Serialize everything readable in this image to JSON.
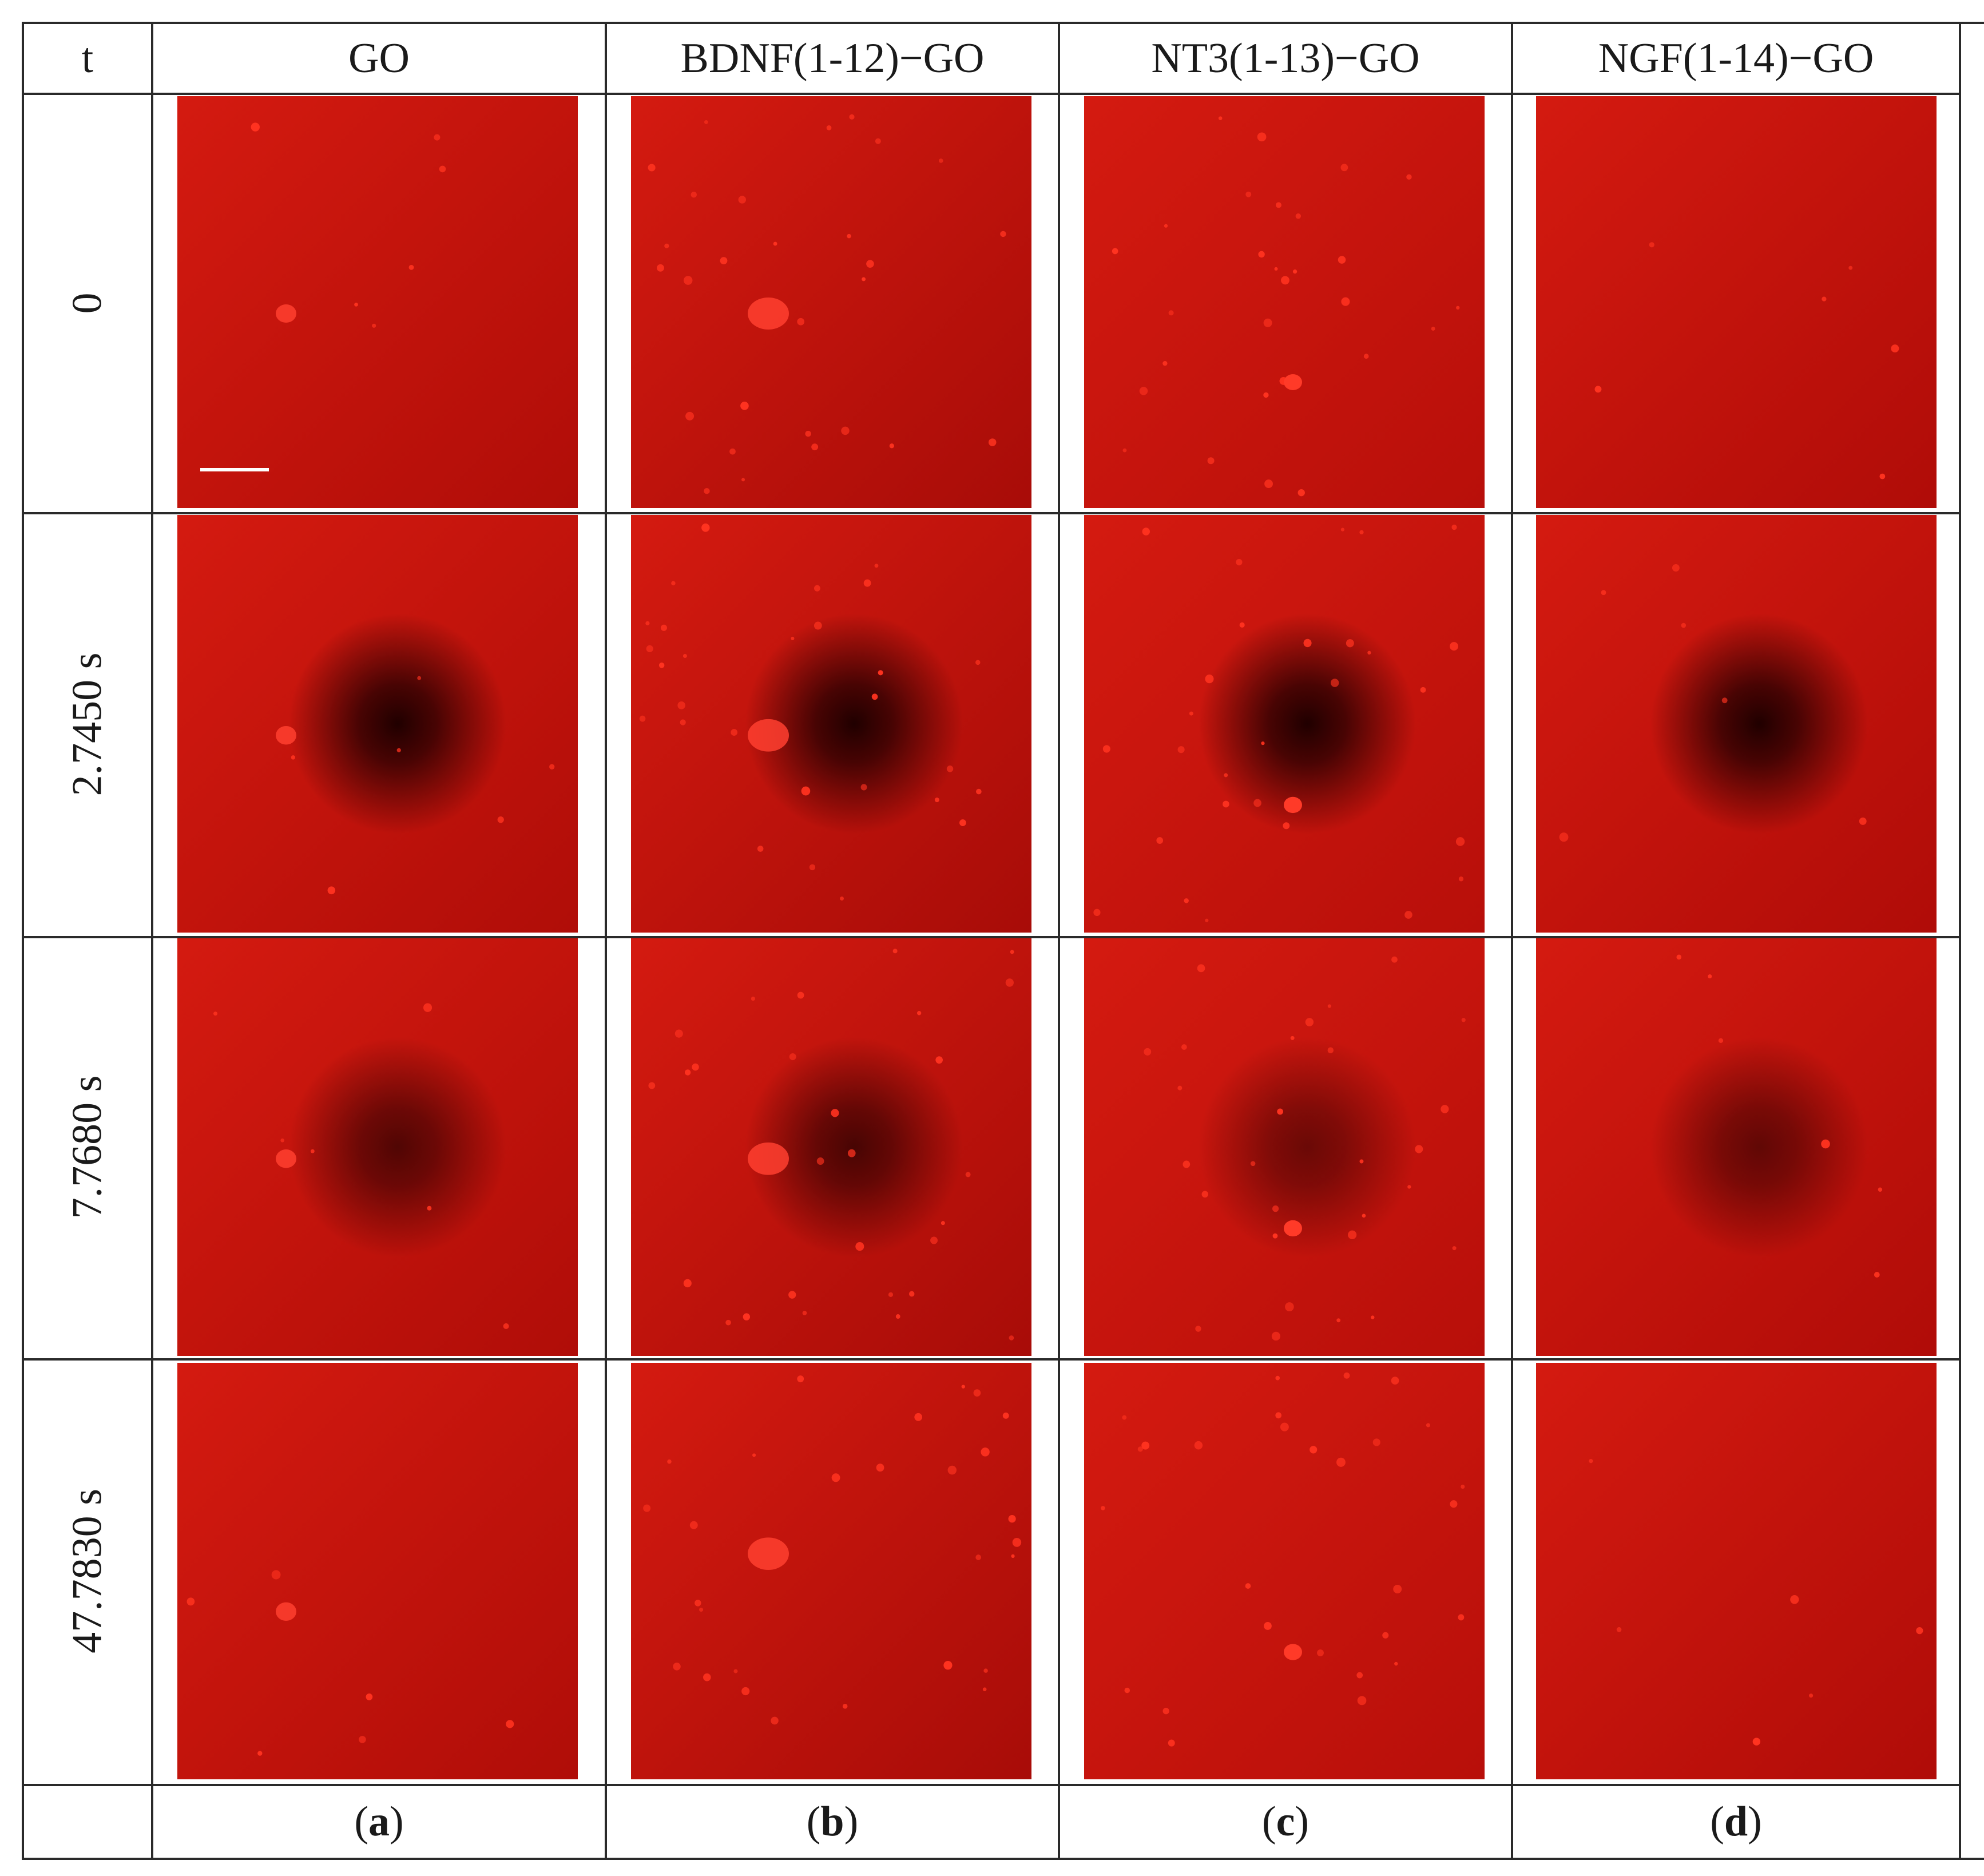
{
  "table": {
    "corner_label": "t",
    "columns": [
      {
        "key": "go",
        "label": "GO"
      },
      {
        "key": "bdnf",
        "label": "BDNF(1-12)−GO"
      },
      {
        "key": "nt3",
        "label": "NT3(1-13)−GO"
      },
      {
        "key": "ngf",
        "label": "NGF(1-14)−GO"
      }
    ],
    "rows": [
      {
        "time": "0"
      },
      {
        "time": "2.7450 s"
      },
      {
        "time": "7.7680 s"
      },
      {
        "time": "47.7830 s"
      }
    ],
    "captions": [
      {
        "open": "(",
        "letter": "a",
        "close": ")"
      },
      {
        "open": "(",
        "letter": "b",
        "close": ")"
      },
      {
        "open": "(",
        "letter": "c",
        "close": ")"
      },
      {
        "open": "(",
        "letter": "d",
        "close": ")"
      }
    ]
  },
  "colors": {
    "frame_base": "#c0100a",
    "dark_spot": "#2a0000",
    "particle": "#ff2a1a"
  }
}
